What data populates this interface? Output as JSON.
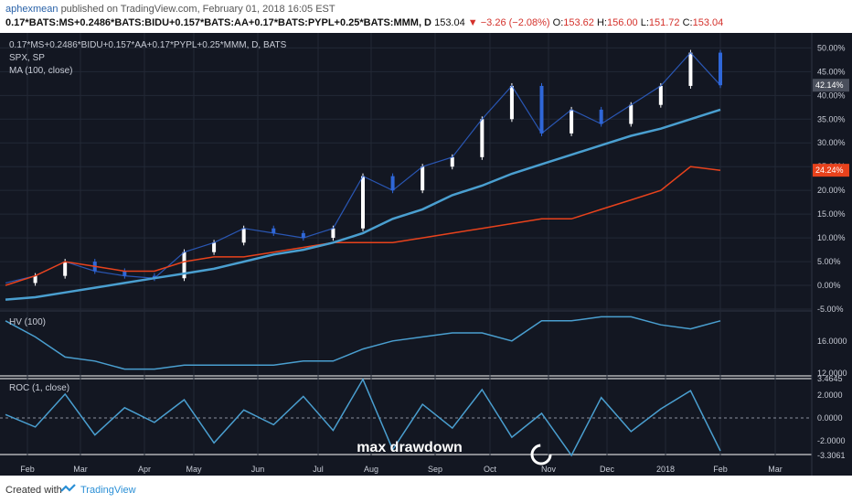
{
  "header": {
    "author": "aphexmean",
    "published": "published on TradingView.com, February 01, 2018 16:05 EST",
    "symbol": "0.17*BATS:MS+0.2486*BATS:BIDU+0.157*BATS:AA+0.17*BATS:PYPL+0.25*BATS:MMM, D",
    "last": "153.04",
    "change": "▼ −3.26 (−2.08%)",
    "o_label": "O:",
    "o_value": "153.62",
    "h_label": "H:",
    "h_value": "156.00",
    "l_label": "L:",
    "l_value": "151.72",
    "c_label": "C:",
    "c_value": "153.04"
  },
  "legend": {
    "main": "0.17*MS+0.2486*BIDU+0.157*AA+0.17*PYPL+0.25*MMM, D, BATS",
    "spx": "SPX, SP",
    "ma": "MA (100, close)",
    "hv": "HV (100)",
    "roc": "ROC (1, close)"
  },
  "annotation": "max drawdown",
  "footer": {
    "created": "Created with",
    "brand": "TradingView"
  },
  "colors": {
    "bg": "#131722",
    "grid": "#232836",
    "axis_text": "#c8ccd6",
    "candle_up": "#ffffff",
    "candle_down": "#2f67d8",
    "spx": "#e8421c",
    "ma": "#4a9fd0",
    "hv": "#4a9fd0",
    "roc": "#4a9fd0",
    "tag_main": "#4a4f5c",
    "tag_spx": "#e8421c"
  },
  "chart_data": [
    {
      "type": "line",
      "title": "0.17*MS+0.2486*BIDU+0.157*AA+0.17*PYPL+0.25*MMM, D, BATS",
      "y_unit": "%",
      "ylim": [
        -5,
        52
      ],
      "yticks": [
        "50.00%",
        "45.00%",
        "40.00%",
        "35.00%",
        "30.00%",
        "25.00%",
        "20.00%",
        "15.00%",
        "10.00%",
        "5.00%",
        "0.00%",
        "-5.00%"
      ],
      "ytick_values": [
        50,
        45,
        40,
        35,
        30,
        25,
        20,
        15,
        10,
        5,
        0,
        -5
      ],
      "x_dates": [
        "2017-02-01",
        "2017-02-15",
        "2017-03-01",
        "2017-03-15",
        "2017-04-01",
        "2017-04-15",
        "2017-05-01",
        "2017-05-15",
        "2017-06-01",
        "2017-06-15",
        "2017-07-01",
        "2017-07-15",
        "2017-08-01",
        "2017-08-15",
        "2017-09-01",
        "2017-09-15",
        "2017-10-01",
        "2017-10-15",
        "2017-11-01",
        "2017-11-15",
        "2017-12-01",
        "2017-12-15",
        "2018-01-01",
        "2018-01-15",
        "2018-02-01"
      ],
      "xticks": [
        "Feb",
        "Mar",
        "Apr",
        "May",
        "Jun",
        "Jul",
        "Aug",
        "Sep",
        "Oct",
        "Nov",
        "Dec",
        "2018",
        "Feb",
        "Mar"
      ],
      "grid": true,
      "series": [
        {
          "name": "0.17*MS+0.2486*BIDU+0.157*AA+0.17*PYPL+0.25*MMM",
          "values": [
            0.5,
            2,
            5,
            3,
            2,
            1.5,
            7,
            9,
            12,
            11,
            10,
            12,
            23,
            20,
            25,
            27,
            35,
            42,
            32,
            37,
            34,
            38,
            42,
            49,
            42.14
          ],
          "last_label": "42.14%"
        },
        {
          "name": "SPX, SP",
          "values": [
            0,
            2,
            5,
            4,
            3,
            3,
            5,
            6,
            6,
            7,
            8,
            9,
            9,
            9,
            10,
            11,
            12,
            13,
            14,
            14,
            16,
            18,
            20,
            25,
            24.24
          ],
          "last_label": "24.24%"
        },
        {
          "name": "MA (100, close)",
          "values": [
            -3,
            -2.5,
            -1.5,
            -0.5,
            0.5,
            1.5,
            2.5,
            3.5,
            5,
            6.5,
            7.5,
            9,
            11,
            14,
            16,
            19,
            21,
            23.5,
            25.5,
            27.5,
            29.5,
            31.5,
            33,
            35,
            37
          ]
        }
      ]
    },
    {
      "type": "line",
      "title": "HV (100)",
      "ylim": [
        12,
        19.5
      ],
      "yticks": [
        "16.0000",
        "12.0000"
      ],
      "ytick_values": [
        16,
        12
      ],
      "series": [
        {
          "name": "HV (100)",
          "values": [
            18.5,
            16.5,
            14,
            13.5,
            12.5,
            12.5,
            13,
            13,
            13,
            13,
            13.5,
            13.5,
            15,
            16,
            16.5,
            17,
            17,
            16,
            18.5,
            18.5,
            19,
            19,
            18,
            17.5,
            18.5
          ]
        }
      ]
    },
    {
      "type": "line",
      "title": "ROC (1, close)",
      "ylim": [
        -3.3061,
        3.4645
      ],
      "yticks": [
        "3.4645",
        "2.0000",
        "0.0000",
        "-2.0000",
        "-3.3061"
      ],
      "ytick_values": [
        3.4645,
        2,
        0,
        -2,
        -3.3061
      ],
      "dashed_zero": true,
      "series": [
        {
          "name": "ROC (1, close)",
          "values": [
            0.3,
            -0.8,
            2.1,
            -1.5,
            0.9,
            -0.4,
            1.6,
            -2.2,
            0.7,
            -0.6,
            1.9,
            -1.1,
            3.4,
            -2.8,
            1.2,
            -0.9,
            2.5,
            -1.7,
            0.4,
            -3.3,
            1.8,
            -1.2,
            0.8,
            2.4,
            -2.9
          ]
        }
      ]
    }
  ]
}
